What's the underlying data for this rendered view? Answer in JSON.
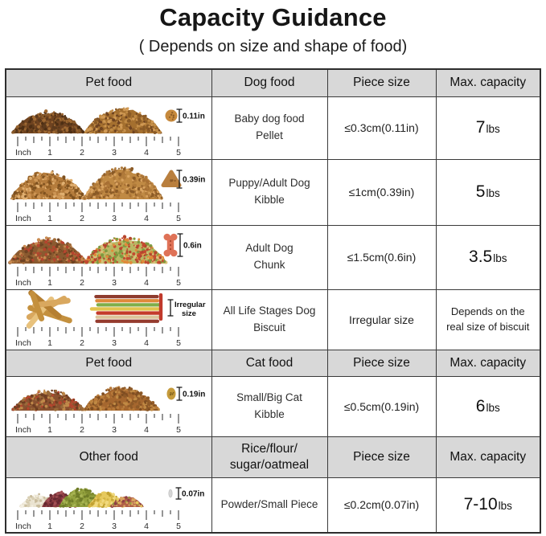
{
  "page": {
    "title": "Capacity Guidance",
    "subtitle": "( Depends on size and shape of food)"
  },
  "colors": {
    "header_bg": "#d8d8d8",
    "border": "#3a3a3a",
    "text": "#1f1f1f"
  },
  "ruler": {
    "unit": "Inch",
    "numbers": [
      "1",
      "2",
      "3",
      "4",
      "5"
    ]
  },
  "sections": [
    {
      "header": {
        "c1": "Pet food",
        "c2": "Dog food",
        "c3": "Piece size",
        "c4": "Max. capacity"
      },
      "rows": [
        {
          "name_lines": [
            "Baby dog food",
            "Pellet"
          ],
          "piece_size": "≤0.3cm(0.11in)",
          "capacity": {
            "value": "7",
            "unit": "lbs"
          },
          "illustration": {
            "piles": [
              [
                "#6f4320",
                "#8a5a2a",
                "#5c3a1c",
                "#a06a33",
                "#4e2f14"
              ],
              [
                "#a5702f",
                "#c08a44",
                "#8a5a26",
                "#d19a55",
                "#6f4320"
              ]
            ],
            "sample": {
              "kind": "circle",
              "colors": [
                "#c6893c",
                "#8a5a24"
              ]
            },
            "marker_lines": [
              "0.11in"
            ]
          }
        },
        {
          "name_lines": [
            "Puppy/Adult Dog",
            "Kibble"
          ],
          "piece_size": "≤1cm(0.39in)",
          "capacity": {
            "value": "5",
            "unit": "lbs"
          },
          "illustration": {
            "piles": [
              [
                "#b57c3c",
                "#cd9554",
                "#996428",
                "#e0af70",
                "#7f5220"
              ],
              [
                "#c08a44",
                "#a87034",
                "#d9a360",
                "#8a5a26",
                "#b07a3a"
              ]
            ],
            "sample": {
              "kind": "triangle",
              "colors": [
                "#b97f3e",
                "#8a5a28"
              ]
            },
            "marker_lines": [
              "0.39in"
            ]
          }
        },
        {
          "name_lines": [
            "Adult Dog",
            "Chunk"
          ],
          "piece_size": "≤1.5cm(0.6in)",
          "capacity": {
            "value": "3.5",
            "unit": "lbs"
          },
          "illustration": {
            "piles": [
              [
                "#8a5a30",
                "#b5452e",
                "#a06a38",
                "#c98a50",
                "#6f4322"
              ],
              [
                "#b8b864",
                "#e08a3a",
                "#c44a30",
                "#d9c27a",
                "#7f9a40",
                "#b5452e"
              ]
            ],
            "sample": {
              "kind": "bone",
              "colors": [
                "#df7257",
                "#a8462f"
              ]
            },
            "marker_lines": [
              "0.6in"
            ]
          }
        },
        {
          "name_lines": [
            "All Life Stages Dog",
            "Biscuit"
          ],
          "piece_size": "Irregular size",
          "capacity": {
            "lines": [
              "Depends on the",
              "real size of biscuit"
            ]
          },
          "illustration": {
            "crossed": [
              "#d9a85f",
              "#c4903e",
              "#e8c27d",
              "#b57f32"
            ],
            "stack": [
              "#8e3b2e",
              "#e08a3a",
              "#7fae4a",
              "#e2c44e",
              "#c43a2a",
              "#dcc49a",
              "#953b2e"
            ],
            "sample": {
              "kind": "stick",
              "colors": [
                "#c0392b"
              ]
            },
            "marker_lines": [
              "Irregular",
              "size"
            ]
          }
        }
      ]
    },
    {
      "header": {
        "c1": "Pet food",
        "c2": "Cat food",
        "c3": "Piece size",
        "c4": "Max. capacity"
      },
      "rows": [
        {
          "name_lines": [
            "Small/Big Cat",
            "Kibble"
          ],
          "piece_size": "≤0.5cm(0.19in)",
          "capacity": {
            "value": "6",
            "unit": "lbs"
          },
          "illustration": {
            "piles": [
              [
                "#8a5230",
                "#b5452e",
                "#c08a4a",
                "#6f3f22",
                "#9a6a3a"
              ],
              [
                "#a5672f",
                "#c08a44",
                "#7f4e22",
                "#b87a3a",
                "#8e5a28"
              ]
            ],
            "sample": {
              "kind": "oval",
              "colors": [
                "#c59a3b",
                "#7f601e"
              ]
            },
            "marker_lines": [
              "0.19in"
            ]
          }
        }
      ]
    },
    {
      "header": {
        "c1": "Other food",
        "c2_lines": [
          "Rice/flour/",
          "sugar/oatmeal"
        ],
        "c3": "Piece size",
        "c4": "Max. capacity"
      },
      "rows": [
        {
          "name_lines": [
            "Powder/Small Piece"
          ],
          "piece_size": "≤0.2cm(0.07in)",
          "capacity": {
            "value": "7-10",
            "unit": "lbs"
          },
          "illustration": {
            "grain_mounds": [
              [
                "#eae3d0",
                "#d9cfb4",
                "#f4efe2",
                "#c9bc9c"
              ],
              [
                "#8e3f44",
                "#7a3138",
                "#a25055",
                "#642830"
              ],
              [
                "#94a23f",
                "#7f8c30",
                "#a9b554",
                "#6f7c28"
              ],
              [
                "#e6c95e",
                "#d4b544",
                "#f0d97e",
                "#c2a232"
              ],
              [
                "#b06048",
                "#8e3f44",
                "#d9a360",
                "#e6c95e",
                "#94a23f"
              ]
            ],
            "sample": {
              "kind": "grain",
              "colors": [
                "#d6d6d6",
                "#bdbdbd"
              ]
            },
            "marker_lines": [
              "0.07in"
            ]
          }
        }
      ]
    }
  ]
}
